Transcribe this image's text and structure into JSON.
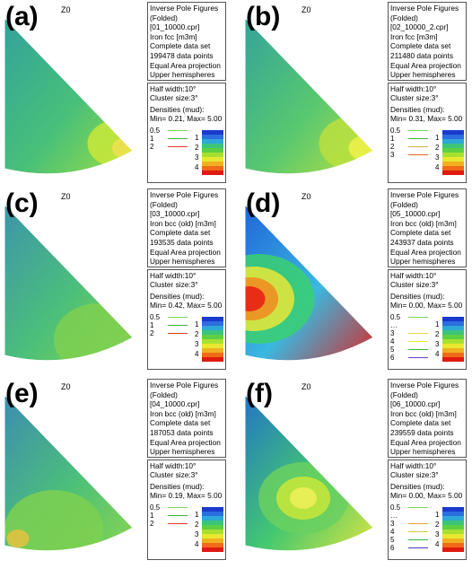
{
  "panels": [
    {
      "id": "a",
      "label": "(a)",
      "axis_label": "Z0",
      "info": [
        "Inverse Pole Figures",
        "(Folded)",
        "[01_10000.cpr]",
        "Iron fcc [m3m]",
        "Complete data set",
        "199478 data points",
        "Equal Area projection",
        "Upper hemispheres"
      ],
      "legend_header": [
        "Half width:10°",
        "Cluster size:3°",
        "Densities (mud):",
        "Min= 0.21, Max= 5.00"
      ],
      "contours": [
        {
          "level": "0.5",
          "color": "#7dd35a"
        },
        {
          "level": "1",
          "color": "#3ab53a"
        },
        {
          "level": "2",
          "color": "#e03c2a"
        }
      ],
      "colorbar_labels": [
        "1",
        "2",
        "3",
        "4"
      ],
      "colors": {
        "base": "#2f9ea0",
        "mid": "#48c07a",
        "hot": "#a8e23a"
      }
    },
    {
      "id": "b",
      "label": "(b)",
      "axis_label": "Z0",
      "info": [
        "Inverse Pole Figures",
        "(Folded)",
        "[02_10000_2.cpr]",
        "Iron fcc [m3m]",
        "Complete data set",
        "211480 data points",
        "Equal Area projection",
        "Upper hemispheres"
      ],
      "legend_header": [
        "Half width:10°",
        "Cluster size:3°",
        "Densities (mud):",
        "Min= 0.31, Max= 5.00"
      ],
      "contours": [
        {
          "level": "0.5",
          "color": "#7dd35a"
        },
        {
          "level": "1",
          "color": "#3ab53a"
        },
        {
          "level": "2",
          "color": "#d8b04a"
        },
        {
          "level": "3",
          "color": "#e06a2a"
        }
      ],
      "colorbar_labels": [
        "1",
        "2",
        "3",
        "4"
      ],
      "colors": {
        "base": "#2f9ea0",
        "mid": "#58c870",
        "hot": "#c8e43a"
      }
    },
    {
      "id": "c",
      "label": "(c)",
      "axis_label": "Z0",
      "info": [
        "Inverse Pole Figures",
        "(Folded)",
        "[03_10000.cpr]",
        "Iron bcc (old) [m3m]",
        "Complete data set",
        "193535 data points",
        "Equal Area projection",
        "Upper hemispheres"
      ],
      "legend_header": [
        "Half width:10°",
        "Cluster size:3°",
        "Densities (mud):",
        "Min= 0.42, Max= 5.00"
      ],
      "contours": [
        {
          "level": "0.5",
          "color": "#7dd35a"
        },
        {
          "level": "1",
          "color": "#3ab53a"
        },
        {
          "level": "2",
          "color": "#e03c2a"
        }
      ],
      "colorbar_labels": [
        "1",
        "2",
        "3",
        "4"
      ],
      "colors": {
        "base": "#3a8fb2",
        "mid": "#4cbf7a",
        "hot": "#8fd844"
      }
    },
    {
      "id": "d",
      "label": "(d)",
      "axis_label": "Z0",
      "info": [
        "Inverse Pole Figures",
        "(Folded)",
        "[05_10000.cpr]",
        "Iron bcc (old) [m3m]",
        "Complete data set",
        "243937 data points",
        "Equal Area projection",
        "Upper hemispheres"
      ],
      "legend_header": [
        "Half width:10°",
        "Cluster size:3°",
        "Densities (mud):",
        "Min= 0.00, Max= 5.00"
      ],
      "contours": [
        {
          "level": "0.5",
          "color": "#7dd35a"
        },
        {
          "level": "…",
          "color": "#ffffff"
        },
        {
          "level": "3",
          "color": "#e8d84a"
        },
        {
          "level": "4",
          "color": "#e8e83a"
        },
        {
          "level": "5",
          "color": "#3ab53a"
        },
        {
          "level": "6",
          "color": "#6a3ad8"
        }
      ],
      "colorbar_labels": [
        "1",
        "2",
        "3",
        "4"
      ],
      "colors": {
        "base": "#1d5ad8",
        "mid": "#3ab8e0",
        "hot": "#e81a14"
      }
    },
    {
      "id": "e",
      "label": "(e)",
      "axis_label": "Z0",
      "info": [
        "Inverse Pole Figures",
        "(Folded)",
        "[04_10000.cpr]",
        "Iron bcc (old) [m3m]",
        "Complete data set",
        "187053 data points",
        "Equal Area projection",
        "Upper hemispheres"
      ],
      "legend_header": [
        "Half width:10°",
        "Cluster size:3°",
        "Densities (mud):",
        "Min= 0.19, Max= 5.00"
      ],
      "contours": [
        {
          "level": "0.5",
          "color": "#7dd35a"
        },
        {
          "level": "1",
          "color": "#3ab53a"
        },
        {
          "level": "2",
          "color": "#e03c2a"
        }
      ],
      "colorbar_labels": [
        "1",
        "2",
        "3",
        "4"
      ],
      "colors": {
        "base": "#3a86b8",
        "mid": "#4cbf7a",
        "hot": "#8ed84a"
      }
    },
    {
      "id": "f",
      "label": "(f)",
      "axis_label": "Z0",
      "info": [
        "Inverse Pole Figures",
        "(Folded)",
        "[06_10000.cpr]",
        "Iron bcc (old) [m3m]",
        "Complete data set",
        "239559 data points",
        "Equal Area projection",
        "Upper hemispheres"
      ],
      "legend_header": [
        "Half width:10°",
        "Cluster size:3°",
        "Densities (mud):",
        "Min= 0.00, Max= 5.00"
      ],
      "contours": [
        {
          "level": "0.5",
          "color": "#7dd35a"
        },
        {
          "level": "…",
          "color": "#ffffff"
        },
        {
          "level": "3",
          "color": "#e8a03a"
        },
        {
          "level": "4",
          "color": "#d8c83a"
        },
        {
          "level": "5",
          "color": "#3ab53a"
        },
        {
          "level": "6",
          "color": "#4a3ad8"
        }
      ],
      "colorbar_labels": [
        "1",
        "2",
        "3",
        "4"
      ],
      "colors": {
        "base": "#1d6ad0",
        "mid": "#44c870",
        "hot": "#f0e83a"
      }
    }
  ],
  "colorbar": [
    "#1a3acd",
    "#2c6de0",
    "#2fa8d8",
    "#3cc57a",
    "#5cd040",
    "#a8e030",
    "#e8e830",
    "#f0b020",
    "#f06a18",
    "#e01a10"
  ]
}
